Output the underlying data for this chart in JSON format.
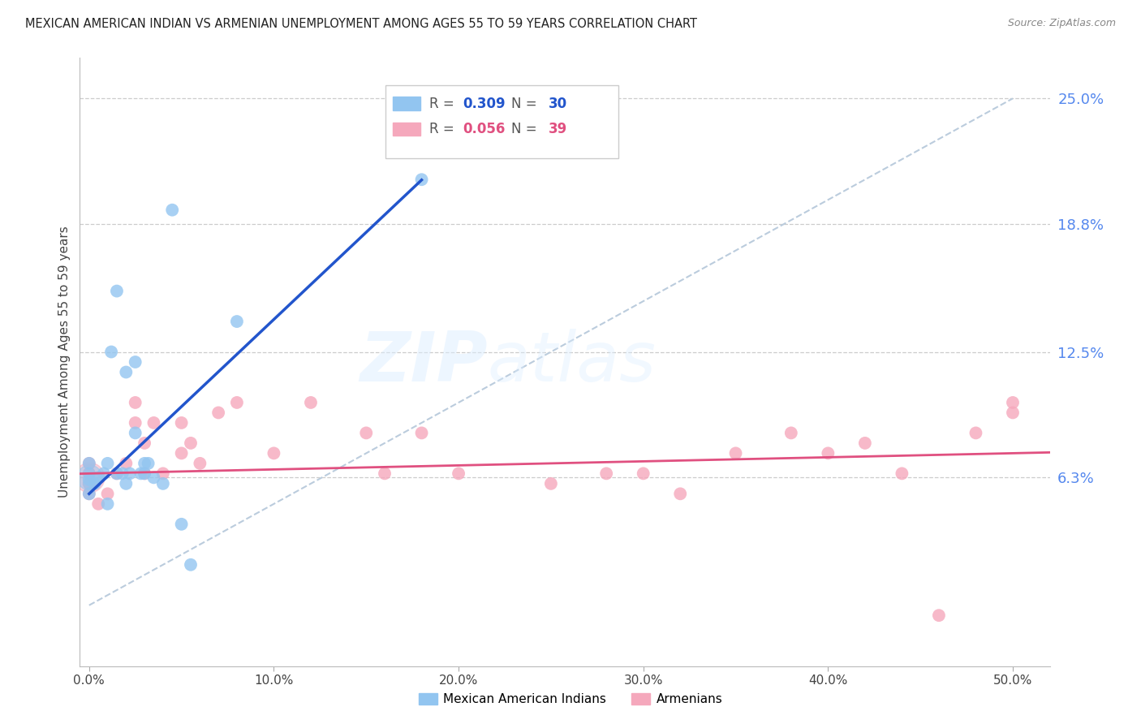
{
  "title": "MEXICAN AMERICAN INDIAN VS ARMENIAN UNEMPLOYMENT AMONG AGES 55 TO 59 YEARS CORRELATION CHART",
  "source": "Source: ZipAtlas.com",
  "ylabel": "Unemployment Among Ages 55 to 59 years",
  "xlim": [
    -0.5,
    52
  ],
  "ylim": [
    -3,
    27
  ],
  "yticks_right": [
    0,
    6.3,
    12.5,
    18.8,
    25.0
  ],
  "yticklabels_right": [
    "",
    "6.3%",
    "12.5%",
    "18.8%",
    "25.0%"
  ],
  "xticks": [
    0,
    10,
    20,
    30,
    40,
    50
  ],
  "xticklabels": [
    "0.0%",
    "10.0%",
    "20.0%",
    "30.0%",
    "40.0%",
    "50.0%"
  ],
  "legend_r1": "0.309",
  "legend_n1": "30",
  "legend_r2": "0.056",
  "legend_n2": "39",
  "color_blue": "#92C5F0",
  "color_pink": "#F5A8BC",
  "line_blue": "#2255CC",
  "line_pink": "#E05080",
  "diagonal_color": "#BBCCDD",
  "watermark_zip": "ZIP",
  "watermark_atlas": "atlas",
  "mexican_x": [
    0.0,
    0.0,
    0.0,
    0.0,
    0.0,
    0.3,
    0.5,
    0.8,
    1.0,
    1.0,
    1.2,
    1.5,
    1.5,
    1.8,
    2.0,
    2.0,
    2.2,
    2.5,
    2.5,
    2.8,
    3.0,
    3.0,
    3.2,
    3.5,
    4.0,
    4.5,
    5.0,
    5.5,
    8.0,
    18.0
  ],
  "mexican_y": [
    5.5,
    6.0,
    6.2,
    6.5,
    7.0,
    6.0,
    6.3,
    6.5,
    5.0,
    7.0,
    12.5,
    6.5,
    15.5,
    6.5,
    6.0,
    11.5,
    6.5,
    12.0,
    8.5,
    6.5,
    6.5,
    7.0,
    7.0,
    6.3,
    6.0,
    19.5,
    4.0,
    2.0,
    14.0,
    21.0
  ],
  "armenian_x": [
    0.0,
    0.0,
    0.0,
    0.0,
    0.5,
    1.0,
    1.5,
    2.0,
    2.5,
    2.5,
    3.0,
    3.0,
    3.5,
    4.0,
    5.0,
    5.0,
    5.5,
    6.0,
    7.0,
    8.0,
    10.0,
    12.0,
    15.0,
    16.0,
    18.0,
    20.0,
    25.0,
    28.0,
    30.0,
    32.0,
    35.0,
    38.0,
    40.0,
    42.0,
    44.0,
    46.0,
    48.0,
    50.0,
    50.0
  ],
  "armenian_y": [
    5.5,
    6.0,
    6.5,
    7.0,
    5.0,
    5.5,
    6.5,
    7.0,
    9.0,
    10.0,
    6.5,
    8.0,
    9.0,
    6.5,
    7.5,
    9.0,
    8.0,
    7.0,
    9.5,
    10.0,
    7.5,
    10.0,
    8.5,
    6.5,
    8.5,
    6.5,
    6.0,
    6.5,
    6.5,
    5.5,
    7.5,
    8.5,
    7.5,
    8.0,
    6.5,
    -0.5,
    8.5,
    9.5,
    10.0
  ],
  "figsize": [
    14.06,
    8.92
  ],
  "dpi": 100
}
